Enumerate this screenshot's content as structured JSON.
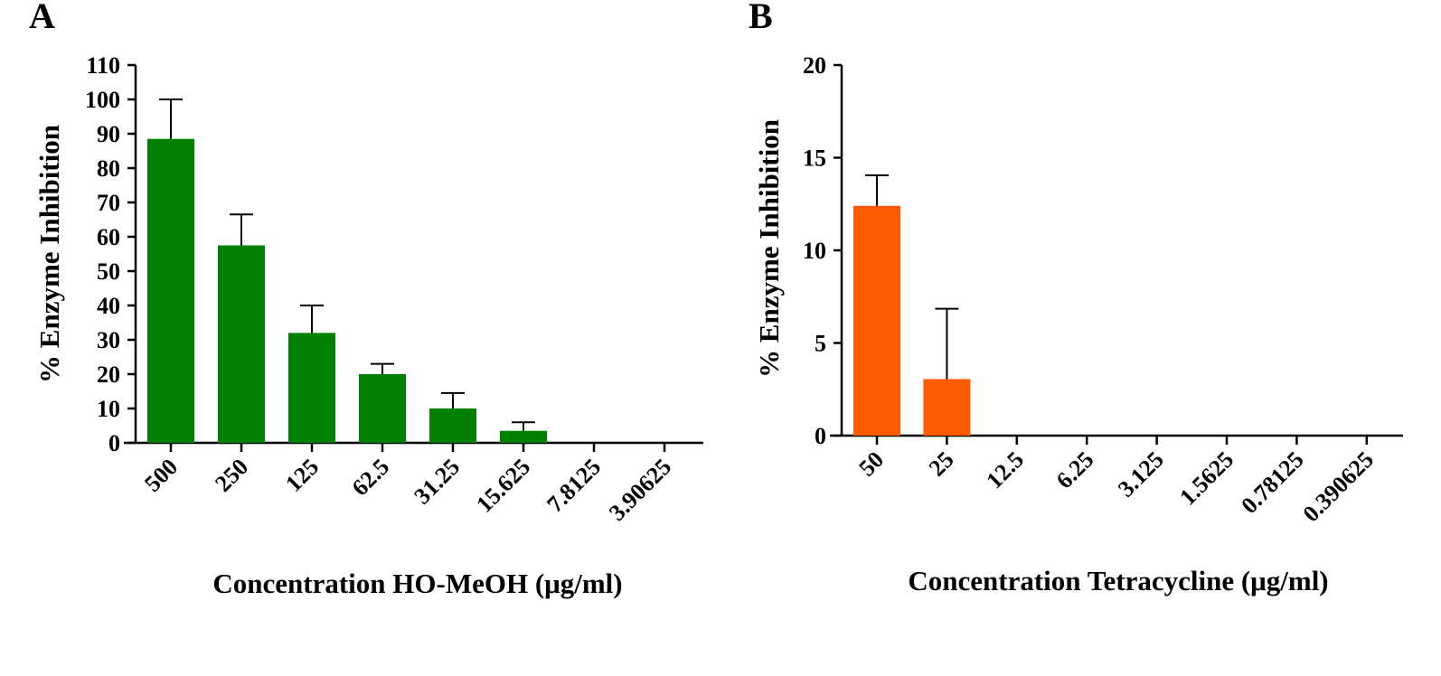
{
  "chart_data": [
    {
      "type": "bar",
      "panel_label": "A",
      "categories": [
        "500",
        "250",
        "125",
        "62.5",
        "31.25",
        "15.625",
        "7.8125",
        "3.90625"
      ],
      "values": [
        88.5,
        57.5,
        32,
        20,
        10,
        3.5,
        0,
        0
      ],
      "errors": [
        11.5,
        9,
        8,
        3,
        4.5,
        2.5,
        0,
        0
      ],
      "color": "#008000",
      "xlabel": "Concentration HO-MeOH (μg/ml)",
      "ylabel": "% Enzyme Inhibition",
      "ylim": [
        0,
        110
      ],
      "yticks": [
        "0",
        "10",
        "20",
        "30",
        "40",
        "50",
        "60",
        "70",
        "80",
        "90",
        "100",
        "110"
      ]
    },
    {
      "type": "bar",
      "panel_label": "B",
      "categories": [
        "50",
        "25",
        "12.5",
        "6.25",
        "3.125",
        "1.5625",
        "0.78125",
        "0.390625"
      ],
      "values": [
        12.4,
        3.05,
        0,
        0,
        0,
        0,
        0,
        0
      ],
      "errors": [
        1.65,
        3.8,
        0,
        0,
        0,
        0,
        0,
        0
      ],
      "color": "#FF5A00",
      "xlabel": "Concentration Tetracycline (μg/ml)",
      "ylabel": "% Enzyme Inhibition",
      "ylim": [
        0,
        20
      ],
      "yticks": [
        "0",
        "5",
        "10",
        "15",
        "20"
      ]
    }
  ]
}
